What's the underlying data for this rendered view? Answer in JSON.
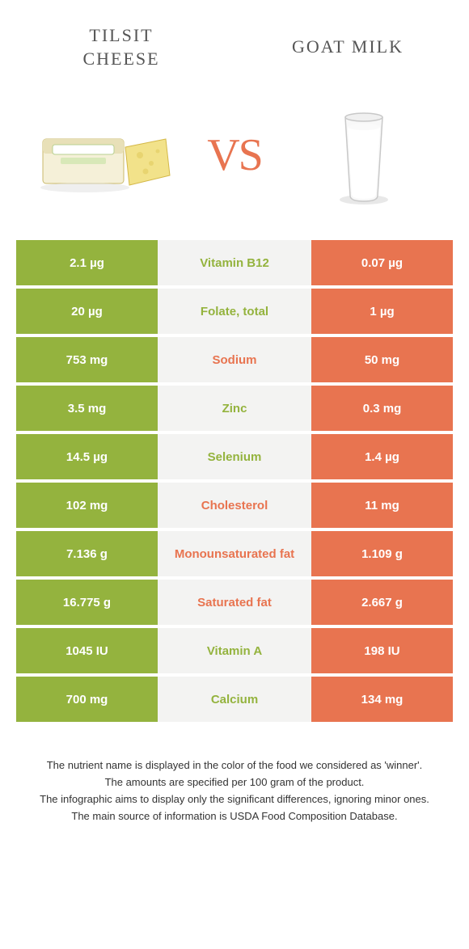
{
  "header": {
    "left_title": "TILSIT CHEESE",
    "right_title": "GOAT MILK",
    "vs": "VS"
  },
  "colors": {
    "left": "#94b33e",
    "right": "#e87450",
    "mid_bg": "#f3f3f2",
    "vs": "#e87450"
  },
  "rows": [
    {
      "left": "2.1 µg",
      "label": "Vitamin B12",
      "right": "0.07 µg",
      "winner": "left"
    },
    {
      "left": "20 µg",
      "label": "Folate, total",
      "right": "1 µg",
      "winner": "left"
    },
    {
      "left": "753 mg",
      "label": "Sodium",
      "right": "50 mg",
      "winner": "right"
    },
    {
      "left": "3.5 mg",
      "label": "Zinc",
      "right": "0.3 mg",
      "winner": "left"
    },
    {
      "left": "14.5 µg",
      "label": "Selenium",
      "right": "1.4 µg",
      "winner": "left"
    },
    {
      "left": "102 mg",
      "label": "Cholesterol",
      "right": "11 mg",
      "winner": "right"
    },
    {
      "left": "7.136 g",
      "label": "Monounsaturated fat",
      "right": "1.109 g",
      "winner": "right"
    },
    {
      "left": "16.775 g",
      "label": "Saturated fat",
      "right": "2.667 g",
      "winner": "right"
    },
    {
      "left": "1045 IU",
      "label": "Vitamin A",
      "right": "198 IU",
      "winner": "left"
    },
    {
      "left": "700 mg",
      "label": "Calcium",
      "right": "134 mg",
      "winner": "left"
    }
  ],
  "footer": {
    "line1": "The nutrient name is displayed in the color of the food we considered as 'winner'.",
    "line2": "The amounts are specified per 100 gram of the product.",
    "line3": "The infographic aims to display only the significant differences, ignoring minor ones.",
    "line4": "The main source of information is USDA Food Composition Database."
  }
}
